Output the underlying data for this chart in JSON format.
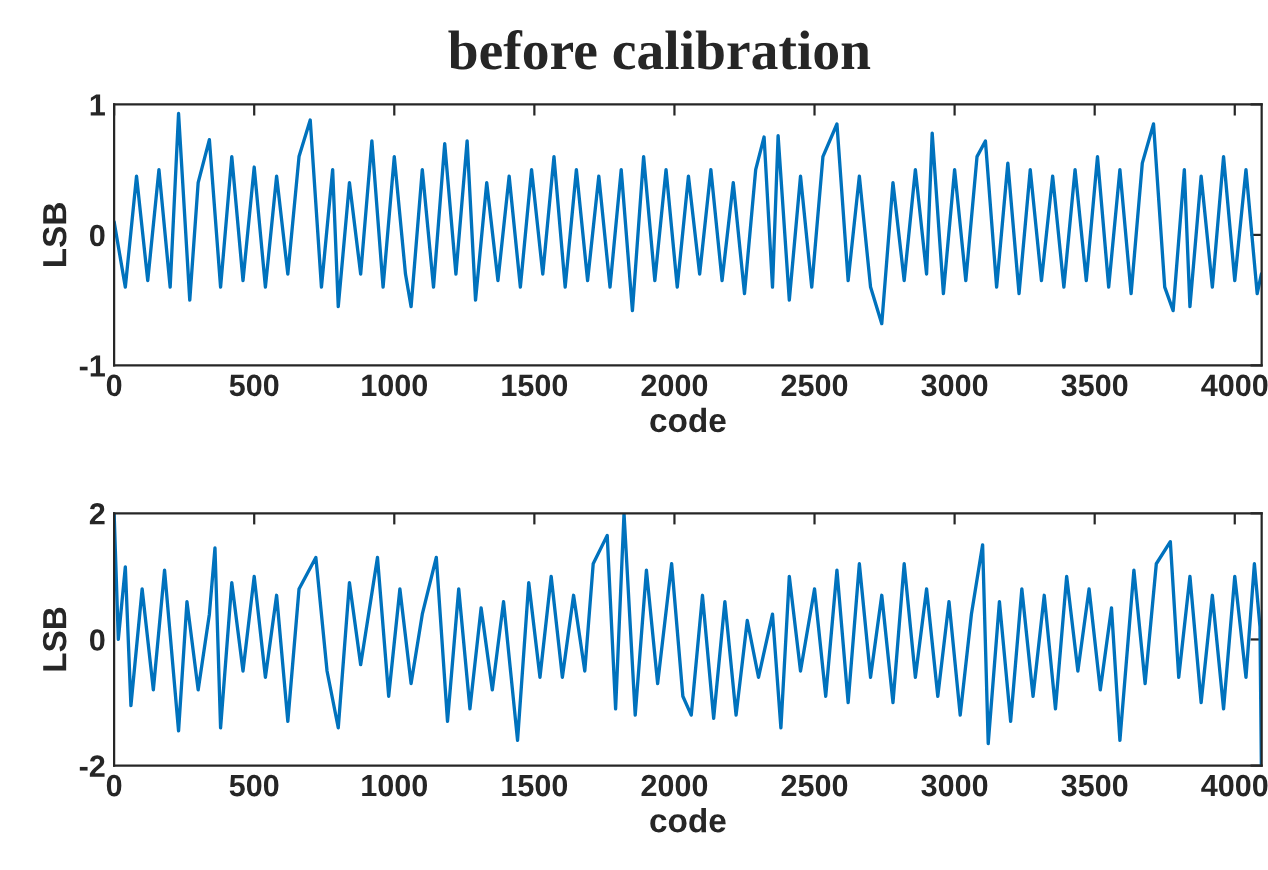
{
  "chart_data": [
    {
      "type": "line",
      "title": "before calibration",
      "xlabel": "code",
      "ylabel": "LSB",
      "xlim": [
        0,
        4096
      ],
      "ylim": [
        -1,
        1
      ],
      "xticks": [
        0,
        500,
        1000,
        1500,
        2000,
        2500,
        3000,
        3500,
        4000
      ],
      "yticks": [
        -1,
        0,
        1
      ],
      "x": [
        0,
        40,
        80,
        120,
        160,
        200,
        230,
        270,
        300,
        340,
        380,
        420,
        460,
        500,
        540,
        580,
        620,
        660,
        700,
        740,
        780,
        800,
        840,
        880,
        920,
        960,
        1000,
        1040,
        1060,
        1100,
        1140,
        1180,
        1220,
        1260,
        1290,
        1330,
        1370,
        1410,
        1450,
        1490,
        1530,
        1570,
        1610,
        1650,
        1690,
        1730,
        1770,
        1810,
        1850,
        1890,
        1930,
        1970,
        2010,
        2050,
        2090,
        2130,
        2170,
        2210,
        2250,
        2290,
        2320,
        2350,
        2370,
        2410,
        2450,
        2490,
        2530,
        2580,
        2620,
        2660,
        2700,
        2740,
        2780,
        2820,
        2860,
        2900,
        2920,
        2960,
        3000,
        3040,
        3080,
        3110,
        3150,
        3190,
        3230,
        3270,
        3310,
        3350,
        3390,
        3430,
        3470,
        3510,
        3550,
        3590,
        3630,
        3670,
        3710,
        3750,
        3780,
        3820,
        3840,
        3880,
        3920,
        3960,
        4000,
        4040,
        4080,
        4095
      ],
      "series": [
        {
          "color": "#0072bd",
          "values": [
            0.1,
            -0.4,
            0.45,
            -0.35,
            0.5,
            -0.4,
            0.93,
            -0.5,
            0.4,
            0.73,
            -0.4,
            0.6,
            -0.35,
            0.52,
            -0.4,
            0.45,
            -0.3,
            0.6,
            0.88,
            -0.4,
            0.5,
            -0.55,
            0.4,
            -0.3,
            0.72,
            -0.4,
            0.6,
            -0.3,
            -0.55,
            0.5,
            -0.4,
            0.7,
            -0.3,
            0.72,
            -0.5,
            0.4,
            -0.35,
            0.45,
            -0.4,
            0.5,
            -0.3,
            0.6,
            -0.4,
            0.5,
            -0.35,
            0.45,
            -0.4,
            0.5,
            -0.58,
            0.6,
            -0.35,
            0.5,
            -0.4,
            0.45,
            -0.3,
            0.5,
            -0.35,
            0.4,
            -0.45,
            0.5,
            0.75,
            -0.4,
            0.76,
            -0.5,
            0.45,
            -0.4,
            0.6,
            0.85,
            -0.35,
            0.45,
            -0.4,
            -0.68,
            0.4,
            -0.35,
            0.5,
            -0.3,
            0.78,
            -0.45,
            0.5,
            -0.35,
            0.6,
            0.72,
            -0.4,
            0.55,
            -0.45,
            0.5,
            -0.35,
            0.45,
            -0.4,
            0.5,
            -0.35,
            0.6,
            -0.4,
            0.5,
            -0.45,
            0.55,
            0.85,
            -0.4,
            -0.58,
            0.5,
            -0.55,
            0.45,
            -0.4,
            0.6,
            -0.35,
            0.5,
            -0.45,
            -0.3
          ]
        }
      ]
    },
    {
      "type": "line",
      "xlabel": "code",
      "ylabel": "LSB",
      "xlim": [
        0,
        4096
      ],
      "ylim": [
        -2,
        2
      ],
      "xticks": [
        0,
        500,
        1000,
        1500,
        2000,
        2500,
        3000,
        3500,
        4000
      ],
      "yticks": [
        -2,
        0,
        2
      ],
      "x": [
        0,
        15,
        40,
        60,
        100,
        140,
        180,
        230,
        260,
        300,
        340,
        360,
        380,
        420,
        460,
        500,
        540,
        580,
        620,
        660,
        720,
        760,
        800,
        840,
        880,
        940,
        980,
        1020,
        1060,
        1100,
        1150,
        1190,
        1230,
        1270,
        1310,
        1350,
        1390,
        1440,
        1480,
        1520,
        1560,
        1600,
        1640,
        1680,
        1710,
        1760,
        1790,
        1820,
        1860,
        1900,
        1940,
        1990,
        2030,
        2060,
        2100,
        2140,
        2180,
        2220,
        2260,
        2300,
        2350,
        2380,
        2410,
        2450,
        2500,
        2540,
        2580,
        2620,
        2660,
        2700,
        2740,
        2780,
        2820,
        2860,
        2900,
        2940,
        2980,
        3020,
        3060,
        3100,
        3120,
        3160,
        3200,
        3240,
        3280,
        3320,
        3360,
        3400,
        3440,
        3480,
        3520,
        3560,
        3590,
        3640,
        3680,
        3720,
        3770,
        3800,
        3840,
        3880,
        3920,
        3960,
        4000,
        4040,
        4070,
        4090,
        4095
      ],
      "series": [
        {
          "color": "#0072bd",
          "values": [
            2.0,
            0.0,
            1.15,
            -1.05,
            0.8,
            -0.8,
            1.1,
            -1.45,
            0.6,
            -0.8,
            0.4,
            1.45,
            -1.4,
            0.9,
            -0.5,
            1.0,
            -0.6,
            0.7,
            -1.3,
            0.8,
            1.3,
            -0.5,
            -1.4,
            0.9,
            -0.4,
            1.3,
            -0.9,
            0.8,
            -0.7,
            0.4,
            1.3,
            -1.3,
            0.8,
            -1.1,
            0.5,
            -0.8,
            0.6,
            -1.6,
            0.9,
            -0.6,
            1.0,
            -0.6,
            0.7,
            -0.5,
            1.2,
            1.65,
            -1.1,
            2.0,
            -1.2,
            1.1,
            -0.7,
            1.2,
            -0.9,
            -1.2,
            0.7,
            -1.25,
            0.6,
            -1.2,
            0.3,
            -0.6,
            0.4,
            -1.4,
            1.0,
            -0.5,
            0.8,
            -0.9,
            1.1,
            -1.0,
            1.2,
            -0.6,
            0.7,
            -1.0,
            1.2,
            -0.6,
            0.8,
            -0.9,
            0.6,
            -1.2,
            0.4,
            1.5,
            -1.65,
            0.6,
            -1.3,
            0.8,
            -0.9,
            0.7,
            -1.1,
            1.0,
            -0.5,
            0.8,
            -0.8,
            0.5,
            -1.6,
            1.1,
            -0.7,
            1.2,
            1.55,
            -0.6,
            1.0,
            -1.0,
            0.7,
            -1.1,
            1.0,
            -0.6,
            1.2,
            0.2,
            -2.0
          ]
        }
      ]
    }
  ]
}
